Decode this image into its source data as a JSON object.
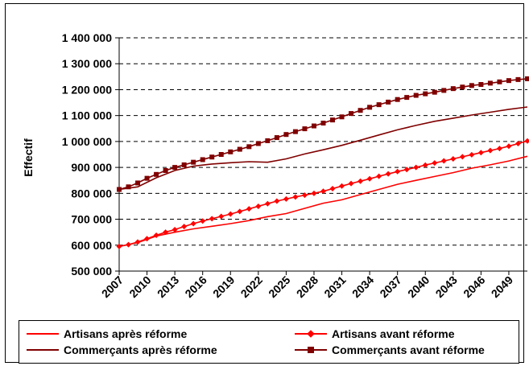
{
  "chart_data": {
    "type": "line",
    "title": "",
    "xlabel": "",
    "ylabel": "Effectif",
    "ylim": [
      500000,
      1400000
    ],
    "y_ticks": [
      500000,
      600000,
      700000,
      800000,
      900000,
      1000000,
      1100000,
      1200000,
      1300000,
      1400000
    ],
    "y_tick_labels": [
      "500 000",
      "600 000",
      "700 000",
      "800 000",
      "900 000",
      "1 000 000",
      "1 100 000",
      "1 200 000",
      "1 300 000",
      "1 400 000"
    ],
    "x_range": [
      2007,
      2051
    ],
    "x_tick_labels": [
      "2007",
      "2010",
      "2013",
      "2016",
      "2019",
      "2022",
      "2025",
      "2028",
      "2031",
      "2034",
      "2037",
      "2040",
      "2043",
      "2046",
      "2049"
    ],
    "grid": "horizontal dashed",
    "legend_position": "bottom",
    "series": [
      {
        "name": "Artisans après réforme",
        "color": "#FF0000",
        "marker": "none",
        "x": [
          2007,
          2009,
          2011,
          2013,
          2015,
          2017,
          2019,
          2021,
          2023,
          2025,
          2027,
          2029,
          2031,
          2033,
          2035,
          2037,
          2039,
          2041,
          2043,
          2045,
          2047,
          2049,
          2051
        ],
        "values": [
          595000,
          610000,
          635000,
          650000,
          663000,
          673000,
          683000,
          695000,
          710000,
          722000,
          742000,
          762000,
          775000,
          795000,
          815000,
          835000,
          850000,
          865000,
          880000,
          897000,
          910000,
          925000,
          943000
        ]
      },
      {
        "name": "Artisans avant réforme",
        "color": "#FF0000",
        "marker": "diamond",
        "x": [
          2007,
          2008,
          2009,
          2010,
          2011,
          2012,
          2013,
          2014,
          2015,
          2016,
          2017,
          2018,
          2019,
          2020,
          2021,
          2022,
          2023,
          2024,
          2025,
          2026,
          2027,
          2028,
          2029,
          2030,
          2031,
          2032,
          2033,
          2034,
          2035,
          2036,
          2037,
          2038,
          2039,
          2040,
          2041,
          2042,
          2043,
          2044,
          2045,
          2046,
          2047,
          2048,
          2049,
          2050,
          2051
        ],
        "values": [
          595000,
          602000,
          612000,
          625000,
          638000,
          650000,
          660000,
          672000,
          683000,
          693000,
          702000,
          711000,
          720000,
          730000,
          740000,
          750000,
          760000,
          770000,
          778000,
          786000,
          793000,
          800000,
          808000,
          818000,
          828000,
          838000,
          847000,
          856000,
          866000,
          875000,
          884000,
          892000,
          900000,
          909000,
          917000,
          925000,
          933000,
          941000,
          949000,
          957000,
          965000,
          973000,
          982000,
          992000,
          1002000
        ]
      },
      {
        "name": "Commerçants après réforme",
        "color": "#800000",
        "marker": "none",
        "x": [
          2007,
          2009,
          2011,
          2013,
          2015,
          2017,
          2019,
          2021,
          2023,
          2025,
          2027,
          2029,
          2031,
          2033,
          2035,
          2037,
          2039,
          2041,
          2043,
          2045,
          2047,
          2049,
          2051
        ],
        "values": [
          815000,
          825000,
          860000,
          888000,
          905000,
          913000,
          918000,
          922000,
          920000,
          933000,
          952000,
          968000,
          985000,
          1005000,
          1025000,
          1045000,
          1062000,
          1078000,
          1090000,
          1102000,
          1113000,
          1124000,
          1133000
        ]
      },
      {
        "name": "Commerçants avant réforme",
        "color": "#800000",
        "marker": "square",
        "x": [
          2007,
          2008,
          2009,
          2010,
          2011,
          2012,
          2013,
          2014,
          2015,
          2016,
          2017,
          2018,
          2019,
          2020,
          2021,
          2022,
          2023,
          2024,
          2025,
          2026,
          2027,
          2028,
          2029,
          2030,
          2031,
          2032,
          2033,
          2034,
          2035,
          2036,
          2037,
          2038,
          2039,
          2040,
          2041,
          2042,
          2043,
          2044,
          2045,
          2046,
          2047,
          2048,
          2049,
          2050,
          2051
        ],
        "values": [
          815000,
          825000,
          840000,
          858000,
          873000,
          888000,
          900000,
          910000,
          920000,
          930000,
          940000,
          950000,
          960000,
          970000,
          980000,
          992000,
          1003000,
          1015000,
          1027000,
          1038000,
          1049000,
          1060000,
          1071000,
          1083000,
          1095000,
          1108000,
          1120000,
          1132000,
          1142000,
          1152000,
          1162000,
          1170000,
          1178000,
          1184000,
          1190000,
          1197000,
          1204000,
          1210000,
          1216000,
          1220000,
          1225000,
          1230000,
          1235000,
          1239000,
          1242000
        ]
      }
    ]
  }
}
